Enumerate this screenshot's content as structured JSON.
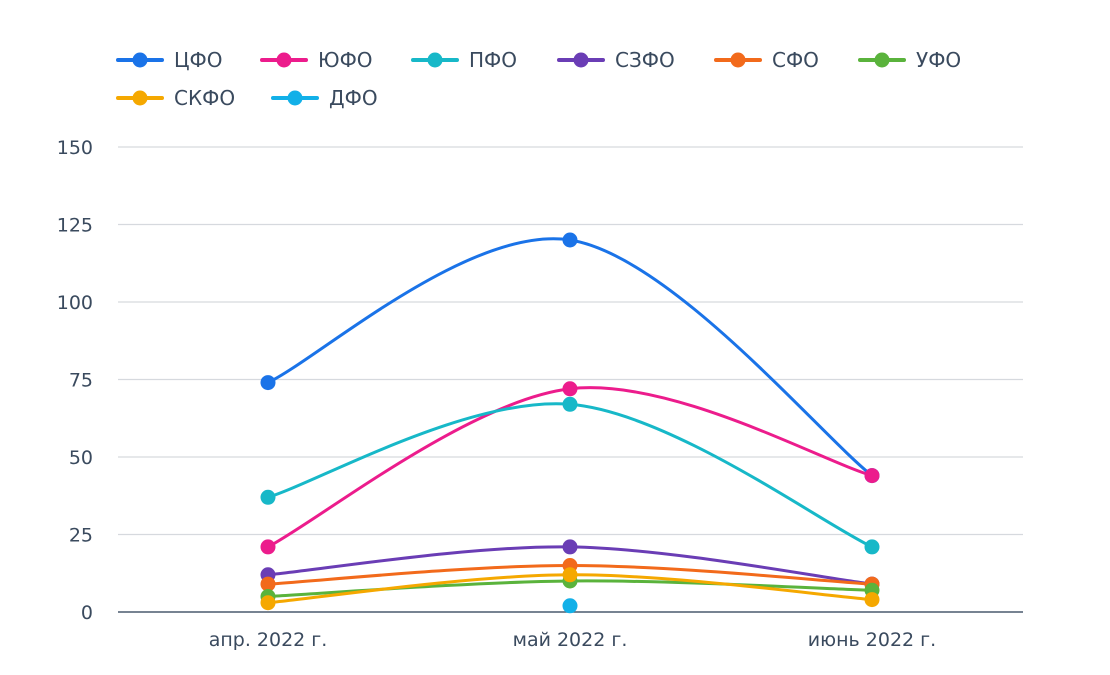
{
  "chart_data": {
    "type": "line",
    "title": "",
    "xlabel": "",
    "ylabel": "",
    "categories": [
      "апр. 2022 г.",
      "май 2022 г.",
      "июнь 2022 г."
    ],
    "ylim": [
      0,
      150
    ],
    "yticks": [
      0,
      25,
      50,
      75,
      100,
      125,
      150
    ],
    "grid": true,
    "legend_position": "top-left",
    "curve": "smooth",
    "series": [
      {
        "name": "ЦФО",
        "color": "#1a73e8",
        "values": [
          74,
          120,
          44
        ]
      },
      {
        "name": "ЮФО",
        "color": "#ec1c8c",
        "values": [
          21,
          72,
          44
        ]
      },
      {
        "name": "ПФО",
        "color": "#17b8c8",
        "values": [
          37,
          67,
          21
        ]
      },
      {
        "name": "СЗФО",
        "color": "#6a3db5",
        "values": [
          12,
          21,
          9
        ]
      },
      {
        "name": "СФО",
        "color": "#f26a1b",
        "values": [
          9,
          15,
          9
        ]
      },
      {
        "name": "УФО",
        "color": "#5ab33c",
        "values": [
          5,
          10,
          7
        ]
      },
      {
        "name": "СКФО",
        "color": "#f5a800",
        "values": [
          3,
          12,
          4
        ]
      },
      {
        "name": "ДФО",
        "color": "#12b0e8",
        "values": [
          null,
          2,
          null
        ]
      }
    ]
  }
}
